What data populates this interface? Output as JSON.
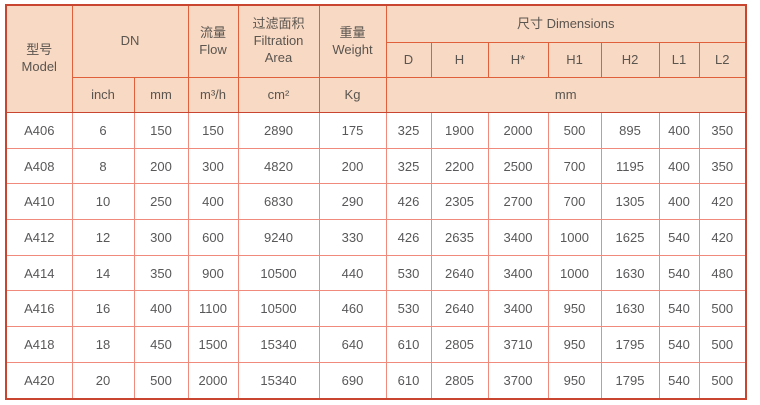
{
  "colors": {
    "header_bg": "#f8d9c4",
    "header_border": "#e0603c",
    "outer_border": "#c9452f",
    "body_border": "#ef8a7d",
    "text": "#5b5b5b"
  },
  "table": {
    "header": {
      "model": "型号\nModel",
      "dn": "DN",
      "flow": "流量\nFlow",
      "filtration_area": "过滤面积\nFiltration\nArea",
      "weight": "重量\nWeight",
      "dimensions": "尺寸 Dimensions",
      "dim_columns": [
        "D",
        "H",
        "H*",
        "H1",
        "H2",
        "L1",
        "L2"
      ],
      "units": {
        "dn_inch": "inch",
        "dn_mm": "mm",
        "flow": "m³/h",
        "filtration_area": "cm²",
        "weight": "Kg",
        "dimensions": "mm"
      }
    },
    "columns": [
      "Model",
      "DN inch",
      "DN mm",
      "Flow m³/h",
      "Filtration Area cm²",
      "Weight Kg",
      "D",
      "H",
      "H*",
      "H1",
      "H2",
      "L1",
      "L2"
    ],
    "rows": [
      [
        "A406",
        "6",
        "150",
        "150",
        "2890",
        "175",
        "325",
        "1900",
        "2000",
        "500",
        "895",
        "400",
        "350"
      ],
      [
        "A408",
        "8",
        "200",
        "300",
        "4820",
        "200",
        "325",
        "2200",
        "2500",
        "700",
        "1195",
        "400",
        "350"
      ],
      [
        "A410",
        "10",
        "250",
        "400",
        "6830",
        "290",
        "426",
        "2305",
        "2700",
        "700",
        "1305",
        "400",
        "420"
      ],
      [
        "A412",
        "12",
        "300",
        "600",
        "9240",
        "330",
        "426",
        "2635",
        "3400",
        "1000",
        "1625",
        "540",
        "420"
      ],
      [
        "A414",
        "14",
        "350",
        "900",
        "10500",
        "440",
        "530",
        "2640",
        "3400",
        "1000",
        "1630",
        "540",
        "480"
      ],
      [
        "A416",
        "16",
        "400",
        "1100",
        "10500",
        "460",
        "530",
        "2640",
        "3400",
        "950",
        "1630",
        "540",
        "500"
      ],
      [
        "A418",
        "18",
        "450",
        "1500",
        "15340",
        "640",
        "610",
        "2805",
        "3710",
        "950",
        "1795",
        "540",
        "500"
      ],
      [
        "A420",
        "20",
        "500",
        "2000",
        "15340",
        "690",
        "610",
        "2805",
        "3700",
        "950",
        "1795",
        "540",
        "500"
      ]
    ]
  }
}
